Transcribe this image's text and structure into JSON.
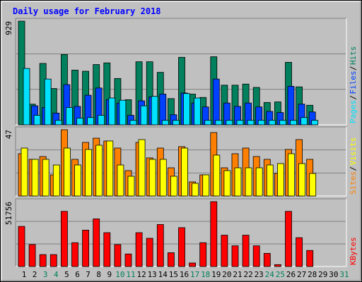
{
  "chart_data": {
    "type": "bar",
    "title": "Daily usage for February 2018",
    "days": [
      "1",
      "2",
      "3",
      "4",
      "5",
      "6",
      "7",
      "8",
      "9",
      "10",
      "11",
      "12",
      "13",
      "14",
      "15",
      "16",
      "17",
      "18",
      "19",
      "20",
      "21",
      "22",
      "23",
      "24",
      "25",
      "26",
      "27",
      "28",
      "29",
      "30",
      "31"
    ],
    "weekend_days": [
      "3",
      "4",
      "10",
      "11",
      "17",
      "18",
      "24",
      "25",
      "31"
    ],
    "colors": {
      "background": "#c0c0c0",
      "plot_bg": "#c0c0c0",
      "title": "#0000ff",
      "hits": "#00805c",
      "files": "#0040ff",
      "pages": "#00e0ff",
      "visits": "#ff8000",
      "sites": "#ffff00",
      "kbytes": "#ff0000",
      "weekday_label": "#000000",
      "weekend_label": "#00805c"
    },
    "panels": [
      {
        "id": "hits-panel",
        "max_label": "929",
        "ylim": [
          0,
          929
        ],
        "legend": [
          {
            "text": "Hits",
            "color": "#00805c"
          },
          {
            "text": "Files",
            "color": "#0040ff"
          },
          {
            "text": "Pages",
            "color": "#00e0ff"
          }
        ],
        "series": [
          {
            "name": "Hits",
            "color": "#00805c",
            "values": [
              929,
              185,
              550,
              325,
              630,
              490,
              480,
              540,
              555,
              415,
              225,
              565,
              565,
              470,
              235,
              605,
              275,
              245,
              610,
              355,
              355,
              365,
              335,
              200,
              205,
              560,
              340,
              175,
              0,
              0,
              0
            ]
          },
          {
            "name": "Files",
            "color": "#0040ff",
            "values": [
              0,
              170,
              155,
              105,
              360,
              165,
              265,
              330,
              225,
              195,
              85,
              215,
              250,
              275,
              90,
              285,
              195,
              160,
              410,
              195,
              165,
              195,
              160,
              120,
              110,
              345,
              185,
              115,
              0,
              0,
              0
            ]
          },
          {
            "name": "Pages",
            "color": "#00e0ff",
            "values": [
              505,
              85,
              410,
              40,
              155,
              60,
              65,
              85,
              240,
              220,
              40,
              170,
              255,
              40,
              40,
              280,
              240,
              40,
              40,
              40,
              40,
              40,
              40,
              40,
              40,
              40,
              65,
              40,
              0,
              0,
              0
            ]
          }
        ]
      },
      {
        "id": "visits-panel",
        "max_label": "47",
        "ylim": [
          0,
          47
        ],
        "legend": [
          {
            "text": "Visits",
            "color": "#ffff00"
          },
          {
            "text": "Sites",
            "color": "#ff8000"
          }
        ],
        "series": [
          {
            "name": "Visits",
            "color": "#ff8000",
            "values": [
              30,
              26,
              28,
              15,
              47,
              26,
              38,
              41,
              39,
              34,
              18,
              38,
              27,
              34,
              20,
              35,
              10,
              15,
              45,
              20,
              30,
              34,
              28,
              26,
              16,
              33,
              40,
              26,
              0,
              0,
              0
            ]
          },
          {
            "name": "Sites",
            "color": "#ffff00",
            "values": [
              34,
              26,
              26,
              22,
              34,
              22,
              33,
              36,
              39,
              22,
              14,
              40,
              26,
              26,
              14,
              34,
              9,
              15,
              29,
              18,
              20,
              20,
              20,
              22,
              23,
              30,
              23,
              16,
              0,
              0,
              0
            ]
          }
        ]
      },
      {
        "id": "kbytes-panel",
        "max_label": "51756",
        "ylim": [
          0,
          51756
        ],
        "legend": [
          {
            "text": "KBytes",
            "color": "#ff0000"
          }
        ],
        "series": [
          {
            "name": "KBytes",
            "color": "#ff0000",
            "values": [
              32000,
              17500,
              9500,
              9500,
              44000,
              19000,
              29000,
              38000,
              27000,
              17500,
              10000,
              27000,
              22500,
              33500,
              11000,
              31000,
              2800,
              19000,
              51756,
              25000,
              16500,
              25000,
              16500,
              10500,
              1500,
              44000,
              23000,
              12800,
              0,
              0,
              0
            ]
          }
        ]
      }
    ]
  }
}
